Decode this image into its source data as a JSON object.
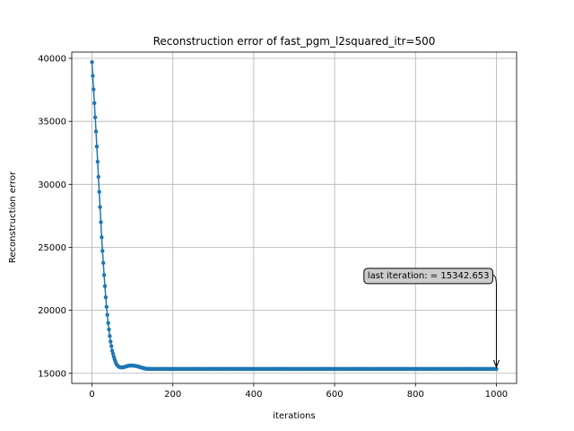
{
  "chart_data": {
    "type": "line",
    "title": "Reconstruction error of fast_pgm_l2squared_itr=500",
    "xlabel": "iterations",
    "ylabel": "Reconstruction error",
    "xlim": [
      -50,
      1050
    ],
    "ylim": [
      14200,
      40500
    ],
    "xticks": [
      0,
      200,
      400,
      600,
      800,
      1000
    ],
    "yticks": [
      15000,
      20000,
      25000,
      30000,
      35000,
      40000
    ],
    "grid": true,
    "marker": "circle",
    "series_color": "#1f77b4",
    "curve": {
      "x": [
        0,
        5,
        10,
        15,
        20,
        25,
        30,
        35,
        40,
        45,
        50,
        55,
        60,
        65,
        70,
        75,
        80,
        85,
        90,
        95,
        100,
        105,
        110,
        115,
        120,
        125,
        130,
        135,
        140,
        150,
        1000
      ],
      "y": [
        39700,
        37000,
        34200,
        31200,
        28200,
        25200,
        22800,
        20600,
        19000,
        17700,
        16800,
        16200,
        15750,
        15550,
        15480,
        15470,
        15500,
        15550,
        15600,
        15620,
        15620,
        15600,
        15570,
        15530,
        15480,
        15430,
        15390,
        15360,
        15350,
        15343,
        15342.653
      ]
    },
    "annotation": {
      "text": "last iteration: = 15342.653",
      "point": [
        1000,
        15342.653
      ],
      "text_anchor_point": [
        1000,
        22800
      ],
      "box_color": "#cccccc"
    }
  }
}
